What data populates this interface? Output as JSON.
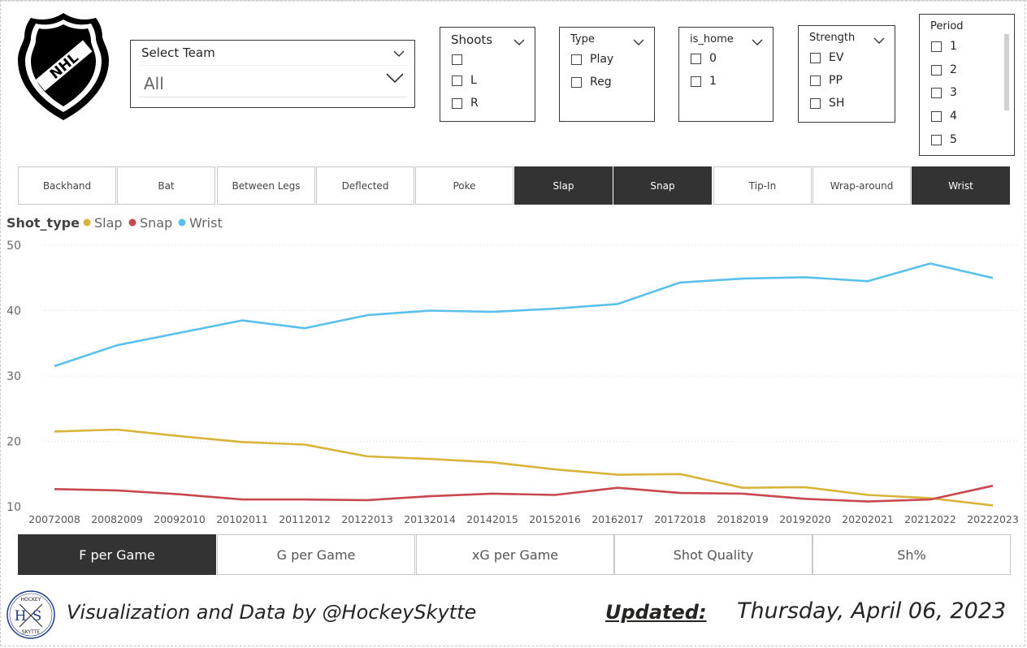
{
  "logo": {
    "icon": "nhl-shield-logo",
    "text": "NHL"
  },
  "team_select": {
    "label": "Select Team",
    "value": "All"
  },
  "slicers": {
    "shoots": {
      "title": "Shoots",
      "options": [
        "",
        "L",
        "R"
      ]
    },
    "type": {
      "title": "Type",
      "options": [
        "Play",
        "Reg"
      ]
    },
    "is_home": {
      "title": "is_home",
      "options": [
        "0",
        "1"
      ]
    },
    "strength": {
      "title": "Strength",
      "options": [
        "EV",
        "PP",
        "SH"
      ]
    },
    "period": {
      "title": "Period",
      "options": [
        "1",
        "2",
        "3",
        "4",
        "5"
      ]
    }
  },
  "shot_types": [
    {
      "label": "Backhand",
      "selected": false
    },
    {
      "label": "Bat",
      "selected": false
    },
    {
      "label": "Between Legs",
      "selected": false
    },
    {
      "label": "Deflected",
      "selected": false
    },
    {
      "label": "Poke",
      "selected": false
    },
    {
      "label": "Slap",
      "selected": true
    },
    {
      "label": "Snap",
      "selected": true
    },
    {
      "label": "Tip-In",
      "selected": false
    },
    {
      "label": "Wrap-around",
      "selected": false
    },
    {
      "label": "Wrist",
      "selected": true
    }
  ],
  "chart_data": {
    "type": "line",
    "legend_title": "Shot_type",
    "legend_position": "top-left",
    "categories": [
      "20072008",
      "20082009",
      "20092010",
      "20102011",
      "20112012",
      "20122013",
      "20132014",
      "20142015",
      "20152016",
      "20162017",
      "20172018",
      "20182019",
      "20192020",
      "20202021",
      "20212022",
      "20222023"
    ],
    "ylim": [
      10,
      50
    ],
    "yticks": [
      "10",
      "20",
      "30",
      "40",
      "50"
    ],
    "grid": true,
    "series": [
      {
        "name": "Slap",
        "color": "#D9B43A",
        "values": [
          21.5,
          21.8,
          20.8,
          19.9,
          19.5,
          17.7,
          17.3,
          16.8,
          15.7,
          14.9,
          15.0,
          12.9,
          13.0,
          11.8,
          11.3,
          10.2
        ]
      },
      {
        "name": "Snap",
        "color": "#C9474E",
        "values": [
          12.7,
          12.5,
          11.9,
          11.1,
          11.1,
          11.0,
          11.6,
          12.0,
          11.8,
          12.9,
          12.1,
          12.0,
          11.2,
          10.8,
          11.1,
          13.2
        ]
      },
      {
        "name": "Wrist",
        "color": "#5BC0EB",
        "values": [
          31.5,
          34.7,
          36.6,
          38.5,
          37.3,
          39.3,
          40.0,
          39.8,
          40.3,
          41.0,
          44.3,
          44.9,
          45.1,
          44.5,
          47.2,
          45.0
        ]
      }
    ]
  },
  "metrics": [
    {
      "label": "F per Game",
      "selected": true
    },
    {
      "label": "G per Game",
      "selected": false
    },
    {
      "label": "xG per Game",
      "selected": false
    },
    {
      "label": "Shot Quality",
      "selected": false
    },
    {
      "label": "Sh%",
      "selected": false
    }
  ],
  "footer": {
    "logo_icon": "hockey-skytte-logo",
    "logo_top": "HOCKEY",
    "logo_mid": "HS",
    "logo_bottom": "SKYTTE",
    "credit": "Visualization and Data by @HockeySkytte",
    "updated_label": "Updated:",
    "updated_value": "Thursday, April 06, 2023"
  }
}
